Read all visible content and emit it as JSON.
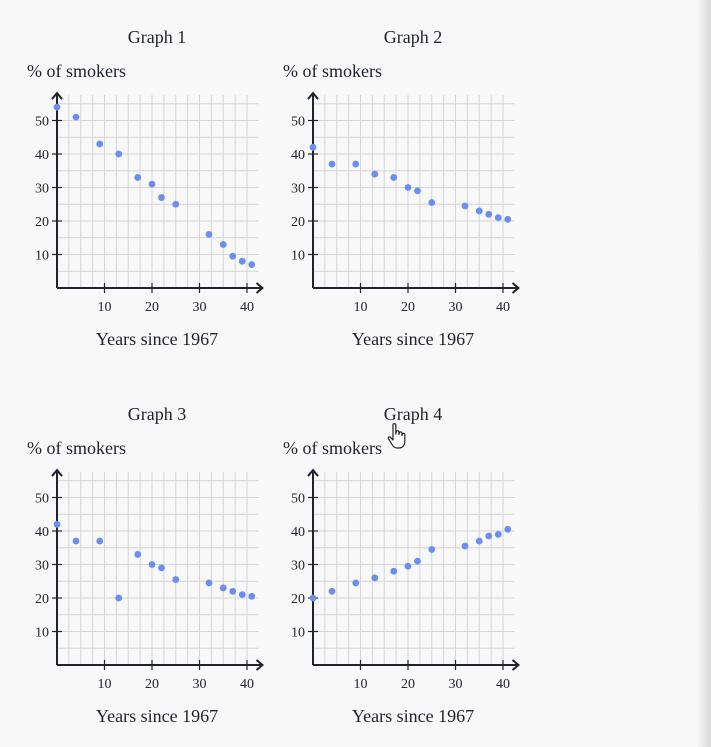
{
  "chart_data": [
    {
      "type": "scatter",
      "title": "Graph 1",
      "ylabel": "% of smokers",
      "xlabel": "Years since 1967",
      "xlim": [
        0,
        42
      ],
      "ylim": [
        0,
        57
      ],
      "xticks": [
        10,
        20,
        30,
        40
      ],
      "yticks": [
        10,
        20,
        30,
        40,
        50
      ],
      "grid": true,
      "points": [
        [
          0,
          54
        ],
        [
          4,
          51
        ],
        [
          9,
          43
        ],
        [
          13,
          40
        ],
        [
          17,
          33
        ],
        [
          20,
          31
        ],
        [
          22,
          27
        ],
        [
          25,
          25
        ],
        [
          32,
          16
        ],
        [
          35,
          13
        ],
        [
          37,
          9.5
        ],
        [
          39,
          8
        ],
        [
          41,
          7
        ]
      ]
    },
    {
      "type": "scatter",
      "title": "Graph 2",
      "ylabel": "% of smokers",
      "xlabel": "Years since 1967",
      "xlim": [
        0,
        42
      ],
      "ylim": [
        0,
        57
      ],
      "xticks": [
        10,
        20,
        30,
        40
      ],
      "yticks": [
        10,
        20,
        30,
        40,
        50
      ],
      "grid": true,
      "points": [
        [
          0,
          42
        ],
        [
          4,
          37
        ],
        [
          9,
          37
        ],
        [
          13,
          34
        ],
        [
          17,
          33
        ],
        [
          20,
          30
        ],
        [
          22,
          29
        ],
        [
          25,
          25.5
        ],
        [
          32,
          24.5
        ],
        [
          35,
          23
        ],
        [
          37,
          22
        ],
        [
          39,
          21
        ],
        [
          41,
          20.5
        ]
      ]
    },
    {
      "type": "scatter",
      "title": "Graph 3",
      "ylabel": "% of smokers",
      "xlabel": "Years since 1967",
      "xlim": [
        0,
        42
      ],
      "ylim": [
        0,
        57
      ],
      "xticks": [
        10,
        20,
        30,
        40
      ],
      "yticks": [
        10,
        20,
        30,
        40,
        50
      ],
      "grid": true,
      "points": [
        [
          0,
          42
        ],
        [
          4,
          37
        ],
        [
          9,
          37
        ],
        [
          13,
          20
        ],
        [
          17,
          33
        ],
        [
          20,
          30
        ],
        [
          22,
          29
        ],
        [
          25,
          25.5
        ],
        [
          32,
          24.5
        ],
        [
          35,
          23
        ],
        [
          37,
          22
        ],
        [
          39,
          21
        ],
        [
          41,
          20.5
        ]
      ]
    },
    {
      "type": "scatter",
      "title": "Graph 4",
      "ylabel": "% of smokers",
      "xlabel": "Years since 1967",
      "xlim": [
        0,
        42
      ],
      "ylim": [
        0,
        57
      ],
      "xticks": [
        10,
        20,
        30,
        40
      ],
      "yticks": [
        10,
        20,
        30,
        40,
        50
      ],
      "grid": true,
      "points": [
        [
          0,
          20
        ],
        [
          4,
          22
        ],
        [
          9,
          24.5
        ],
        [
          13,
          26
        ],
        [
          17,
          28
        ],
        [
          20,
          29.5
        ],
        [
          22,
          31
        ],
        [
          25,
          34.5
        ],
        [
          32,
          35.5
        ],
        [
          35,
          37
        ],
        [
          37,
          38.5
        ],
        [
          39,
          39
        ],
        [
          41,
          40.5
        ]
      ]
    }
  ],
  "colors": {
    "point": "#6d8ef0",
    "grid": "#d4d6d9",
    "axis": "#21242c"
  }
}
